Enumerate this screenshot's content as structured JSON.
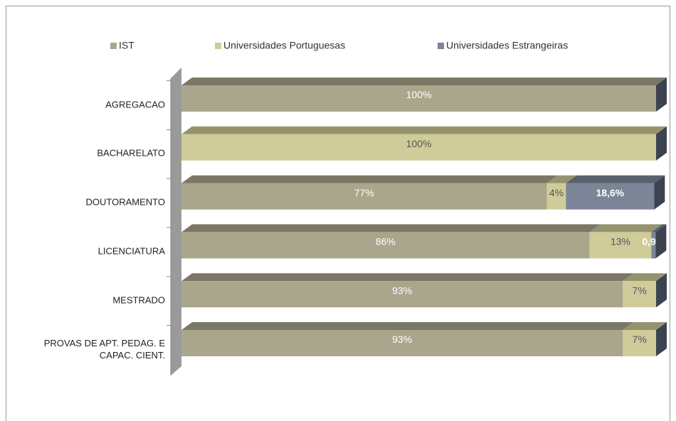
{
  "chart_data": {
    "type": "stacked-bar-3d",
    "categories": [
      "AGREGACAO",
      "BACHARELATO",
      "DOUTORAMENTO",
      "LICENCIATURA",
      "MESTRADO",
      "PROVAS DE APT. PEDAG. E CAPAC. CIENT."
    ],
    "series": [
      {
        "name": "IST",
        "color": "#a9a68c",
        "label_color": "#ffffff",
        "values": [
          100,
          0,
          77,
          86,
          93,
          93
        ],
        "value_labels": [
          "100%",
          null,
          "77%",
          "86%",
          "93%",
          "93%"
        ]
      },
      {
        "name": "Universidades Portuguesas",
        "color": "#cfcc99",
        "label_color": "#555555",
        "values": [
          0,
          100,
          4,
          13,
          7,
          7
        ],
        "value_labels": [
          null,
          "100%",
          "4%",
          "13%",
          "7%",
          "7%"
        ]
      },
      {
        "name": "Universidades Estrangeiras",
        "color": "#7b8597",
        "label_color": "#ffffff",
        "values": [
          0,
          0,
          18.6,
          0.9,
          0,
          0
        ],
        "value_labels": [
          null,
          null,
          "18,6%",
          "0,9%",
          null,
          null
        ]
      }
    ],
    "xlim": [
      0,
      100
    ],
    "legend": "top"
  }
}
